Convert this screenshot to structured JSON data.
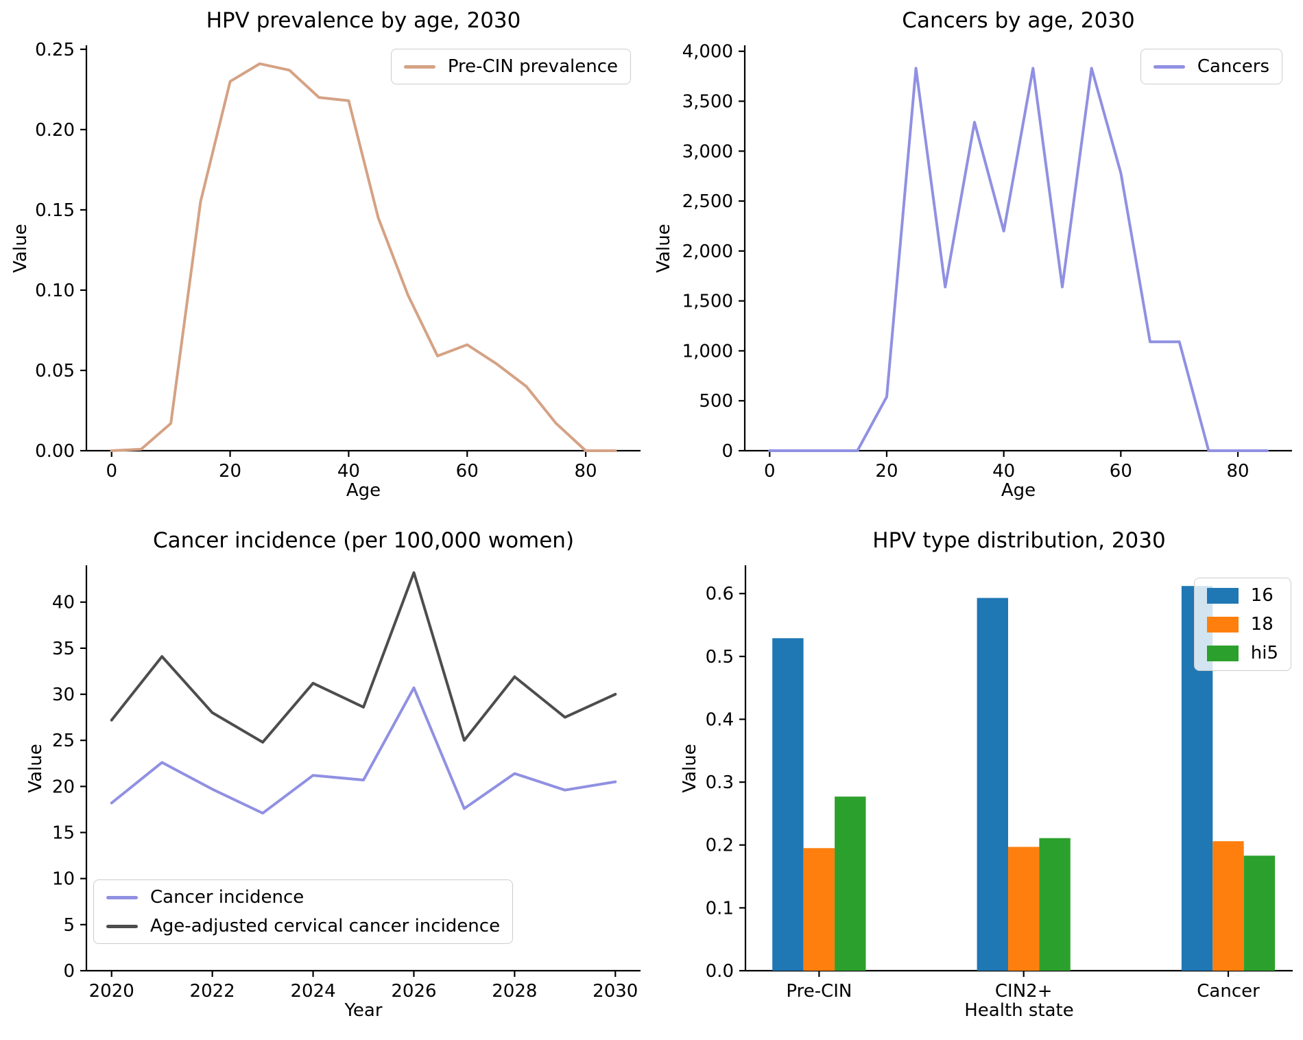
{
  "figure": {
    "background": "#ffffff",
    "text_color": "#000000",
    "spine_color": "#000000"
  },
  "chart_data": [
    {
      "id": "hpv-prevalence-by-age",
      "type": "line",
      "title": "HPV prevalence by age, 2030",
      "xlabel": "Age",
      "ylabel": "Value",
      "x": [
        0,
        5,
        10,
        15,
        20,
        25,
        30,
        35,
        40,
        45,
        50,
        55,
        60,
        65,
        70,
        75,
        80,
        85
      ],
      "series": [
        {
          "name": "Pre-CIN prevalence",
          "color": "#d5a285",
          "values": [
            0.0,
            0.001,
            0.017,
            0.155,
            0.23,
            0.241,
            0.237,
            0.22,
            0.218,
            0.145,
            0.097,
            0.059,
            0.066,
            0.054,
            0.04,
            0.017,
            0.0,
            0.0
          ]
        }
      ],
      "xlim": [
        -4.25,
        89.25
      ],
      "ylim": [
        0,
        0.2525
      ],
      "xticks": [
        0,
        20,
        40,
        60,
        80
      ],
      "xtick_labels": [
        "0",
        "20",
        "40",
        "60",
        "80"
      ],
      "yticks": [
        0,
        0.05,
        0.1,
        0.15,
        0.2,
        0.25
      ],
      "ytick_labels": [
        "0.00",
        "0.05",
        "0.10",
        "0.15",
        "0.20",
        "0.25"
      ],
      "legend_position": "upper right",
      "grid": false
    },
    {
      "id": "cancers-by-age",
      "type": "line",
      "title": "Cancers by age, 2030",
      "xlabel": "Age",
      "ylabel": "Value",
      "x": [
        0,
        5,
        10,
        15,
        20,
        25,
        30,
        35,
        40,
        45,
        50,
        55,
        60,
        65,
        70,
        75,
        80,
        85
      ],
      "series": [
        {
          "name": "Cancers",
          "color": "#9090e2",
          "values": [
            0,
            0,
            0,
            0,
            540,
            3830,
            1640,
            3290,
            2200,
            3830,
            1640,
            3830,
            2780,
            1090,
            1090,
            0,
            0,
            0
          ]
        }
      ],
      "xlim": [
        -4.25,
        89.25
      ],
      "ylim": [
        0,
        4060
      ],
      "xticks": [
        0,
        20,
        40,
        60,
        80
      ],
      "xtick_labels": [
        "0",
        "20",
        "40",
        "60",
        "80"
      ],
      "yticks": [
        0,
        500,
        1000,
        1500,
        2000,
        2500,
        3000,
        3500,
        4000
      ],
      "ytick_labels": [
        "0",
        "500",
        "1,000",
        "1,500",
        "2,000",
        "2,500",
        "3,000",
        "3,500",
        "4,000"
      ],
      "legend_position": "upper right",
      "grid": false
    },
    {
      "id": "cancer-incidence",
      "type": "line",
      "title": "Cancer incidence (per 100,000 women)",
      "xlabel": "Year",
      "ylabel": "Value",
      "x": [
        2020,
        2021,
        2022,
        2023,
        2024,
        2025,
        2026,
        2027,
        2028,
        2029,
        2030
      ],
      "series": [
        {
          "name": "Cancer incidence",
          "color": "#9090e2",
          "values": [
            18.2,
            22.6,
            19.7,
            17.1,
            21.2,
            20.7,
            30.7,
            17.6,
            21.4,
            19.6,
            20.5
          ]
        },
        {
          "name": "Age-adjusted cervical cancer incidence",
          "color": "#4d4d4d",
          "values": [
            27.2,
            34.1,
            28.0,
            24.8,
            31.2,
            28.6,
            43.2,
            25.0,
            31.9,
            27.5,
            30.0
          ]
        }
      ],
      "xlim": [
        2019.5,
        2030.5
      ],
      "ylim": [
        0,
        44
      ],
      "xticks": [
        2020,
        2022,
        2024,
        2026,
        2028,
        2030
      ],
      "xtick_labels": [
        "2020",
        "2022",
        "2024",
        "2026",
        "2028",
        "2030"
      ],
      "yticks": [
        0,
        5,
        10,
        15,
        20,
        25,
        30,
        35,
        40
      ],
      "ytick_labels": [
        "0",
        "5",
        "10",
        "15",
        "20",
        "25",
        "30",
        "35",
        "40"
      ],
      "legend_position": "lower left",
      "grid": false
    },
    {
      "id": "hpv-type-distribution",
      "type": "bar",
      "title": "HPV type distribution, 2030",
      "xlabel": "Health state",
      "ylabel": "Value",
      "categories": [
        "Pre-CIN",
        "CIN2+",
        "Cancer"
      ],
      "series": [
        {
          "name": "16",
          "color": "#1f77b4",
          "values": [
            0.529,
            0.593,
            0.612
          ]
        },
        {
          "name": "18",
          "color": "#ff7f0e",
          "values": [
            0.195,
            0.197,
            0.206
          ]
        },
        {
          "name": "hi5",
          "color": "#2ca02c",
          "values": [
            0.277,
            0.211,
            0.183
          ]
        }
      ],
      "xlim": [
        -0.36,
        2.315
      ],
      "ylim": [
        0,
        0.645
      ],
      "bar_width_units": 0.1523,
      "xticks": [
        0,
        1,
        2
      ],
      "xtick_labels": [
        "Pre-CIN",
        "CIN2+",
        "Cancer"
      ],
      "yticks": [
        0,
        0.1,
        0.2,
        0.3,
        0.4,
        0.5,
        0.6
      ],
      "ytick_labels": [
        "0.0",
        "0.1",
        "0.2",
        "0.3",
        "0.4",
        "0.5",
        "0.6"
      ],
      "legend_position": "upper right",
      "grid": false
    }
  ]
}
